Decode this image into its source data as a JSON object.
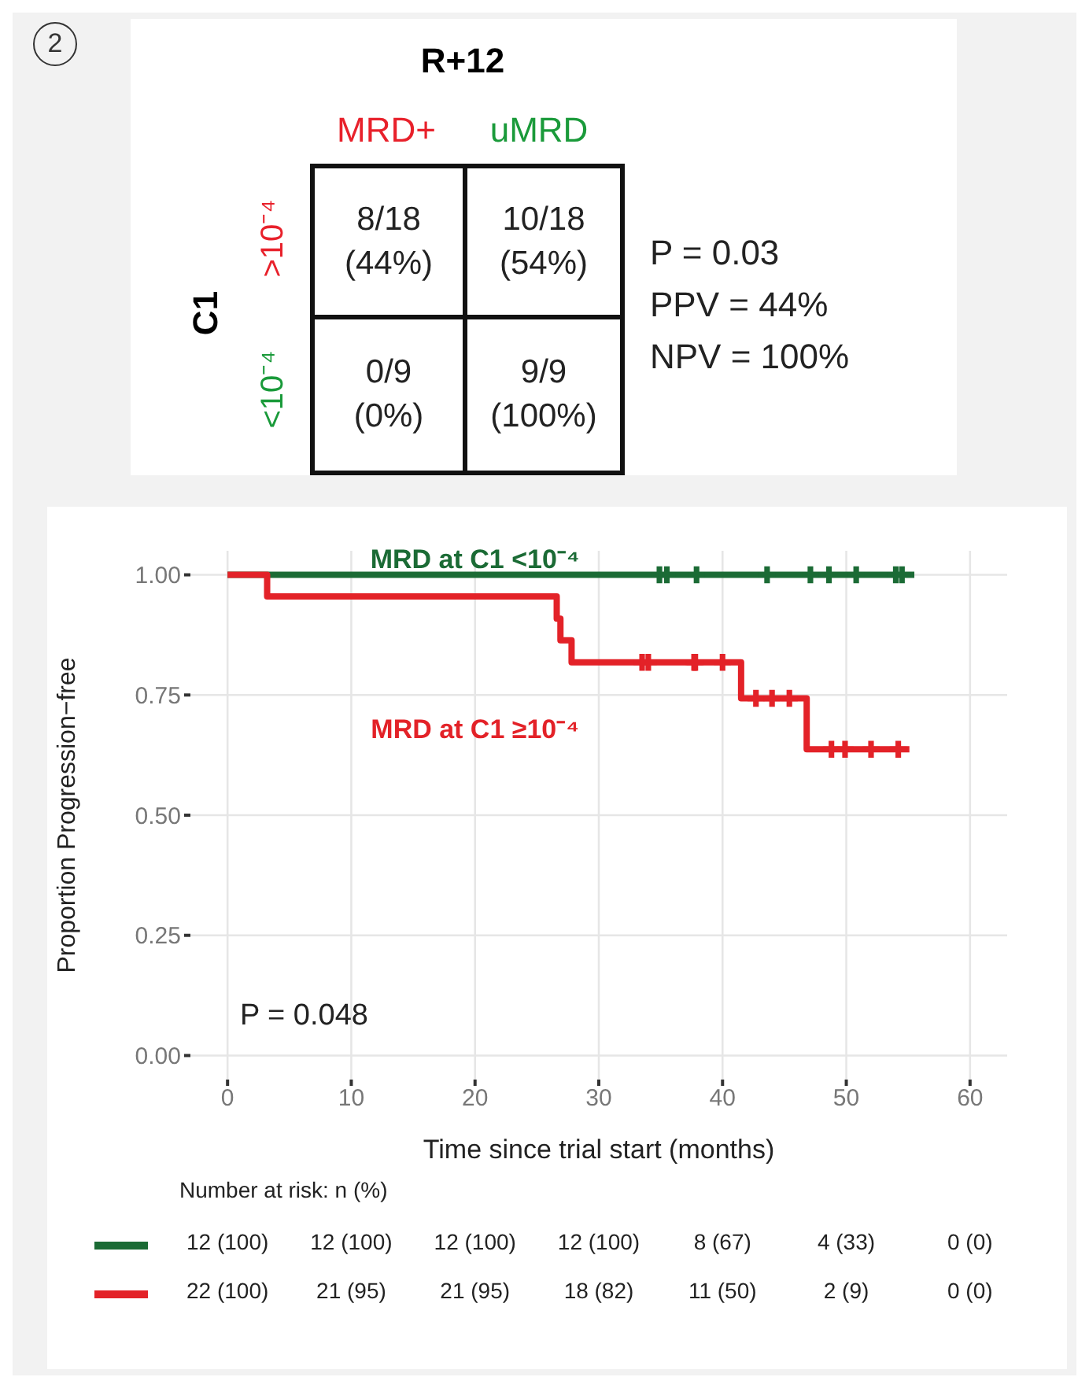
{
  "chart_data": [
    {
      "type": "other",
      "title": "R+12",
      "ylabel": "C1",
      "categories": [
        "MRD+",
        "uMRD"
      ],
      "y_categories": [
        ">10⁻⁴",
        "<10⁻⁴"
      ],
      "annotations": [
        "2",
        "8/18 (44%)",
        "10/18 (54%)",
        "0/9 (0%)",
        "9/9 (100%)",
        "P = 0.03",
        "PPV = 44%",
        "NPV = 100%"
      ]
    },
    {
      "type": "step",
      "xlabel": "Time since trial start (months)",
      "ylabel": "Proportion Progression−free",
      "xlim": [
        -3,
        63
      ],
      "xticks": [
        0,
        10,
        20,
        30,
        40,
        50,
        60
      ],
      "ylim": [
        -0.05,
        1.05
      ],
      "yticks": [
        {
          "value": 0,
          "label": "0.00"
        },
        {
          "value": 0.25,
          "label": "0.25"
        },
        {
          "value": 0.5,
          "label": "0.50"
        },
        {
          "value": 0.75,
          "label": "0.75"
        },
        {
          "value": 1,
          "label": "1.00"
        }
      ],
      "grid": true,
      "legend": false,
      "series": [
        {
          "name": "MRD at C1 <10⁻⁴",
          "color": "#1b6b35",
          "x": [
            0,
            55.5
          ],
          "values": [
            1,
            1
          ]
        },
        {
          "name": "MRD at C1 ≥10⁻⁴",
          "color": "#e32228",
          "x": [
            0,
            3.2,
            26.6,
            26.9,
            27.8,
            41.5,
            46.8,
            55.1
          ],
          "values": [
            1,
            0.955,
            0.909,
            0.864,
            0.818,
            0.743,
            0.637,
            0.637
          ]
        },
        {
          "type": "scatter",
          "marker": "cross",
          "color": "#1b6b35",
          "x": [
            34.9,
            35.5,
            37.9,
            43.6,
            47.1,
            48.6,
            50.8,
            54.0,
            54.5
          ],
          "values": [
            1,
            1,
            1,
            1,
            1,
            1,
            1,
            1,
            1
          ]
        },
        {
          "type": "scatter",
          "marker": "cross",
          "color": "#e32228",
          "x": [
            33.5,
            34.0,
            37.7,
            37.8,
            40.0,
            42.7,
            44.0,
            45.4,
            48.8,
            49.9,
            52.0,
            54.2
          ],
          "values": [
            0.818,
            0.818,
            0.818,
            0.818,
            0.818,
            0.743,
            0.743,
            0.743,
            0.637,
            0.637,
            0.637,
            0.637
          ]
        }
      ],
      "annotations": [
        "P = 0.048",
        "Number at risk: n (%)",
        "12 (100)",
        "12 (100)",
        "12 (100)",
        "12 (100)",
        "8 (67)",
        "4 (33)",
        "0 (0)",
        "22 (100)",
        "21 (95)",
        "21 (95)",
        "18 (82)",
        "11 (50)",
        "2 (9)",
        "0 (0)"
      ]
    }
  ]
}
